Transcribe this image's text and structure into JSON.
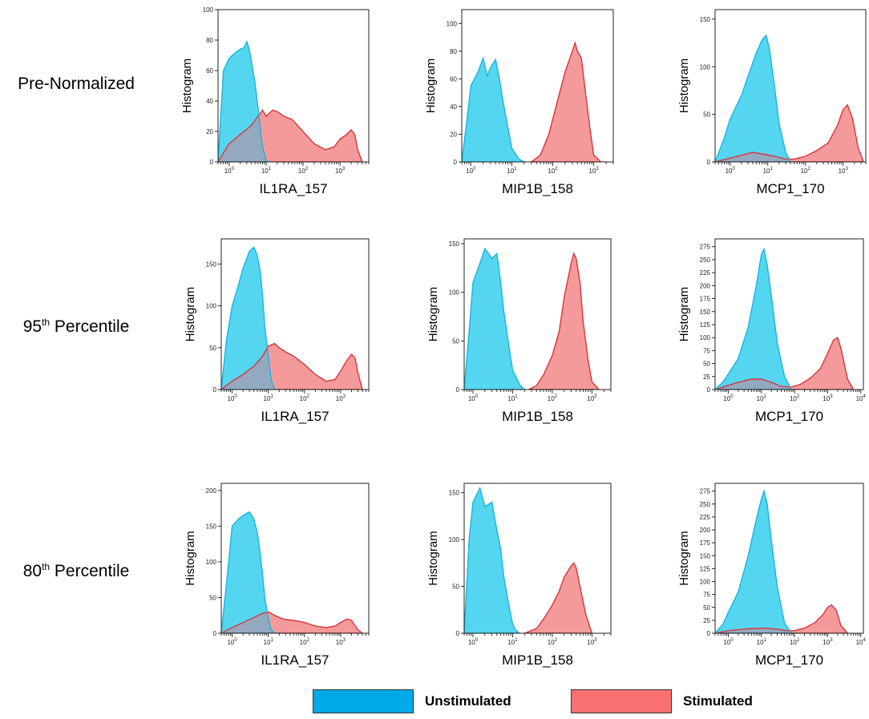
{
  "row_labels": [
    {
      "text": "Pre-Normalized",
      "sup": "",
      "rest": ""
    },
    {
      "text": "95",
      "sup": "th",
      "rest": " Percentile"
    },
    {
      "text": "80",
      "sup": "th",
      "rest": " Percentile"
    }
  ],
  "legend": {
    "unstimulated": {
      "label": "Unstimulated",
      "color": "#00aae8"
    },
    "stimulated": {
      "label": "Stimulated",
      "color": "#f87070"
    }
  },
  "colors": {
    "unstim_fill": "#55d6f0",
    "unstim_line": "#18b5de",
    "stim_fill": "#f59a9a",
    "stim_line": "#d9343c",
    "overlap_fill": "#93a9c0"
  },
  "chart_data": [
    {
      "type": "area",
      "row": "Pre-Normalized",
      "xlabel": "IL1RA_157",
      "ylabel": "Histogram",
      "x_scale": "log",
      "xlim": [
        0.5,
        6000
      ],
      "ylim": [
        0,
        100
      ],
      "yticks": [
        0,
        20,
        40,
        60,
        80,
        100
      ],
      "xticks_exp": [
        0,
        1,
        2,
        3
      ],
      "series": [
        {
          "name": "Unstimulated",
          "x": [
            0.5,
            0.7,
            1,
            1.5,
            2,
            2.5,
            3,
            3.5,
            4,
            5,
            6,
            7,
            8,
            10,
            12
          ],
          "y": [
            0,
            60,
            68,
            72,
            74,
            75,
            79,
            74,
            66,
            52,
            36,
            22,
            10,
            1,
            0
          ]
        },
        {
          "name": "Stimulated",
          "x": [
            0.5,
            0.7,
            1,
            2,
            4,
            6,
            8,
            10,
            15,
            20,
            30,
            50,
            100,
            200,
            400,
            700,
            1000,
            1500,
            2000,
            2500,
            3000,
            4000
          ],
          "y": [
            0,
            6,
            12,
            18,
            24,
            30,
            34,
            30,
            34,
            33,
            30,
            28,
            20,
            12,
            8,
            10,
            15,
            18,
            21,
            18,
            8,
            0
          ]
        }
      ]
    },
    {
      "type": "area",
      "row": "Pre-Normalized",
      "xlabel": "MIP1B_158",
      "ylabel": "Histogram",
      "x_scale": "log",
      "xlim": [
        0.6,
        3000
      ],
      "ylim": [
        0,
        110
      ],
      "yticks": [
        0,
        20,
        40,
        60,
        80,
        100
      ],
      "xticks_exp": [
        0,
        1,
        2,
        3
      ],
      "series": [
        {
          "name": "Unstimulated",
          "x": [
            0.6,
            0.8,
            1,
            1.5,
            2,
            2.5,
            3,
            4,
            5,
            6,
            8,
            10,
            15,
            20
          ],
          "y": [
            0,
            30,
            55,
            65,
            75,
            62,
            68,
            74,
            60,
            45,
            25,
            10,
            2,
            0
          ]
        },
        {
          "name": "Stimulated",
          "x": [
            30,
            50,
            80,
            120,
            200,
            300,
            350,
            400,
            500,
            600,
            800,
            1000,
            1500
          ],
          "y": [
            0,
            5,
            20,
            40,
            65,
            80,
            86,
            80,
            75,
            55,
            25,
            5,
            0
          ]
        }
      ]
    },
    {
      "type": "area",
      "row": "Pre-Normalized",
      "xlabel": "MCP1_170",
      "ylabel": "Histogram",
      "x_scale": "log",
      "xlim": [
        0.4,
        4000
      ],
      "ylim": [
        0,
        160
      ],
      "yticks": [
        0,
        50,
        100,
        150
      ],
      "xticks_exp": [
        0,
        1,
        2,
        3
      ],
      "series": [
        {
          "name": "Unstimulated",
          "x": [
            0.4,
            0.7,
            1,
            2,
            3,
            5,
            7,
            9,
            11,
            15,
            20,
            30,
            40
          ],
          "y": [
            0,
            25,
            45,
            70,
            90,
            115,
            128,
            133,
            120,
            80,
            40,
            10,
            0
          ]
        },
        {
          "name": "Stimulated",
          "x": [
            0.4,
            1,
            2,
            4,
            8,
            15,
            30,
            50,
            100,
            200,
            400,
            700,
            1000,
            1300,
            1800,
            2500,
            3500
          ],
          "y": [
            0,
            4,
            7,
            10,
            8,
            6,
            3,
            3,
            6,
            12,
            20,
            38,
            55,
            60,
            45,
            15,
            0
          ]
        }
      ]
    },
    {
      "type": "area",
      "row": "95th Percentile",
      "xlabel": "IL1RA_157",
      "ylabel": "Histogram",
      "x_scale": "log",
      "xlim": [
        0.5,
        6000
      ],
      "ylim": [
        0,
        180
      ],
      "yticks": [
        0,
        50,
        100,
        150
      ],
      "xticks_exp": [
        0,
        1,
        2,
        3
      ],
      "series": [
        {
          "name": "Unstimulated",
          "x": [
            0.5,
            0.7,
            1,
            1.5,
            2,
            3,
            4,
            5,
            6,
            7,
            8,
            10,
            12,
            15
          ],
          "y": [
            0,
            60,
            100,
            125,
            145,
            165,
            170,
            160,
            140,
            110,
            75,
            40,
            12,
            0
          ]
        },
        {
          "name": "Stimulated",
          "x": [
            0.5,
            0.7,
            1,
            2,
            4,
            7,
            10,
            15,
            20,
            30,
            50,
            100,
            200,
            400,
            700,
            1000,
            1500,
            2000,
            2500,
            3000,
            4000
          ],
          "y": [
            0,
            5,
            10,
            18,
            28,
            40,
            52,
            55,
            50,
            45,
            40,
            30,
            18,
            10,
            12,
            22,
            35,
            42,
            38,
            20,
            0
          ]
        }
      ]
    },
    {
      "type": "area",
      "row": "95th Percentile",
      "xlabel": "MIP1B_158",
      "ylabel": "Histogram",
      "x_scale": "log",
      "xlim": [
        0.6,
        3000
      ],
      "ylim": [
        0,
        155
      ],
      "yticks": [
        0,
        50,
        100,
        150
      ],
      "xticks_exp": [
        0,
        1,
        2,
        3
      ],
      "series": [
        {
          "name": "Unstimulated",
          "x": [
            0.6,
            0.8,
            1,
            1.5,
            2,
            3,
            4,
            5,
            6,
            8,
            10,
            15,
            20
          ],
          "y": [
            0,
            60,
            110,
            130,
            145,
            135,
            140,
            110,
            80,
            45,
            20,
            5,
            0
          ]
        },
        {
          "name": "Stimulated",
          "x": [
            25,
            40,
            60,
            100,
            150,
            200,
            300,
            350,
            400,
            500,
            600,
            800,
            1000,
            1500
          ],
          "y": [
            0,
            4,
            15,
            35,
            60,
            95,
            130,
            140,
            135,
            110,
            70,
            30,
            8,
            0
          ]
        }
      ]
    },
    {
      "type": "area",
      "row": "95th Percentile",
      "xlabel": "MCP1_170",
      "ylabel": "Histogram",
      "x_scale": "log",
      "xlim": [
        0.4,
        12000
      ],
      "ylim": [
        0,
        290
      ],
      "yticks": [
        0,
        25,
        50,
        75,
        100,
        125,
        150,
        175,
        200,
        225,
        250,
        275
      ],
      "xticks_exp": [
        0,
        1,
        2,
        3,
        4
      ],
      "series": [
        {
          "name": "Unstimulated",
          "x": [
            0.4,
            0.7,
            1,
            2,
            4,
            7,
            10,
            12,
            15,
            20,
            30,
            50,
            80
          ],
          "y": [
            0,
            15,
            30,
            60,
            120,
            200,
            260,
            270,
            240,
            180,
            90,
            25,
            0
          ]
        },
        {
          "name": "Stimulated",
          "x": [
            0.4,
            1,
            2,
            5,
            10,
            20,
            40,
            80,
            150,
            300,
            600,
            1000,
            1500,
            2000,
            2500,
            4000,
            6000
          ],
          "y": [
            0,
            8,
            14,
            20,
            20,
            14,
            6,
            5,
            10,
            22,
            40,
            70,
            95,
            100,
            80,
            20,
            0
          ]
        }
      ]
    },
    {
      "type": "area",
      "row": "80th Percentile",
      "xlabel": "IL1RA_157",
      "ylabel": "Histogram",
      "x_scale": "log",
      "xlim": [
        0.5,
        6000
      ],
      "ylim": [
        0,
        210
      ],
      "yticks": [
        0,
        50,
        100,
        150,
        200
      ],
      "xticks_exp": [
        0,
        1,
        2,
        3
      ],
      "series": [
        {
          "name": "Unstimulated",
          "x": [
            0.5,
            0.7,
            1,
            1.5,
            2,
            3,
            4,
            5,
            6,
            7,
            8,
            10,
            12,
            15
          ],
          "y": [
            0,
            70,
            150,
            160,
            165,
            170,
            160,
            140,
            110,
            80,
            50,
            20,
            5,
            0
          ]
        },
        {
          "name": "Stimulated",
          "x": [
            0.5,
            1,
            2,
            4,
            7,
            10,
            15,
            25,
            50,
            100,
            200,
            400,
            700,
            1000,
            1500,
            2000,
            3000,
            4000
          ],
          "y": [
            0,
            8,
            15,
            22,
            28,
            30,
            25,
            20,
            18,
            15,
            10,
            8,
            10,
            15,
            20,
            18,
            5,
            0
          ]
        }
      ]
    },
    {
      "type": "area",
      "row": "80th Percentile",
      "xlabel": "MIP1B_158",
      "ylabel": "Histogram",
      "x_scale": "log",
      "xlim": [
        0.6,
        3000
      ],
      "ylim": [
        0,
        160
      ],
      "yticks": [
        0,
        50,
        100,
        150
      ],
      "xticks_exp": [
        0,
        1,
        2,
        3
      ],
      "series": [
        {
          "name": "Unstimulated",
          "x": [
            0.6,
            0.8,
            1,
            1.5,
            2,
            3,
            4,
            5,
            6,
            8,
            10,
            12,
            15
          ],
          "y": [
            0,
            100,
            140,
            155,
            135,
            140,
            110,
            90,
            60,
            30,
            10,
            3,
            0
          ]
        },
        {
          "name": "Stimulated",
          "x": [
            20,
            40,
            60,
            100,
            150,
            200,
            300,
            350,
            400,
            500,
            700,
            1000
          ],
          "y": [
            0,
            5,
            15,
            30,
            45,
            60,
            72,
            75,
            70,
            50,
            20,
            0
          ]
        }
      ]
    },
    {
      "type": "area",
      "row": "80th Percentile",
      "xlabel": "MCP1_170",
      "ylabel": "Histogram",
      "x_scale": "log",
      "xlim": [
        0.4,
        12000
      ],
      "ylim": [
        0,
        290
      ],
      "yticks": [
        0,
        25,
        50,
        75,
        100,
        125,
        150,
        175,
        200,
        225,
        250,
        275
      ],
      "xticks_exp": [
        0,
        1,
        2,
        3,
        4
      ],
      "series": [
        {
          "name": "Unstimulated",
          "x": [
            0.4,
            0.7,
            1,
            2,
            4,
            7,
            10,
            12,
            15,
            20,
            30,
            50,
            80
          ],
          "y": [
            0,
            18,
            40,
            80,
            150,
            220,
            260,
            275,
            250,
            180,
            90,
            20,
            0
          ]
        },
        {
          "name": "Stimulated",
          "x": [
            0.4,
            1,
            3,
            10,
            30,
            60,
            100,
            200,
            400,
            700,
            1000,
            1300,
            1800,
            2500,
            4000
          ],
          "y": [
            0,
            5,
            8,
            10,
            8,
            5,
            5,
            10,
            20,
            35,
            50,
            55,
            45,
            15,
            0
          ]
        }
      ]
    }
  ]
}
